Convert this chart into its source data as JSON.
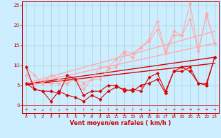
{
  "xlabel": "Vent moyen/en rafales ( km/h )",
  "bg_color": "#cceeff",
  "grid_color": "#aacccc",
  "xlim": [
    -0.5,
    23.5
  ],
  "ylim": [
    -2,
    26
  ],
  "xticks": [
    0,
    1,
    2,
    3,
    4,
    5,
    6,
    7,
    8,
    9,
    10,
    11,
    12,
    13,
    14,
    15,
    16,
    17,
    18,
    19,
    20,
    21,
    22,
    23
  ],
  "yticks": [
    0,
    5,
    10,
    15,
    20,
    25
  ],
  "lines": [
    {
      "comment": "light pink upper jagged line 1 (max line)",
      "x": [
        0,
        1,
        2,
        3,
        4,
        5,
        6,
        7,
        8,
        9,
        10,
        11,
        12,
        13,
        14,
        15,
        16,
        17,
        18,
        19,
        20,
        21,
        22,
        23
      ],
      "y": [
        9.5,
        7.5,
        5.5,
        7.5,
        6.5,
        5.5,
        6.5,
        5.5,
        6.5,
        9.5,
        9.5,
        11.5,
        13.5,
        13.0,
        14.5,
        16.5,
        21.0,
        13.5,
        18.5,
        17.5,
        25.5,
        13.5,
        23.0,
        15.5
      ],
      "color": "#ffaaaa",
      "lw": 0.8,
      "marker": "D",
      "ms": 2.5
    },
    {
      "comment": "light pink upper jagged line 2",
      "x": [
        0,
        1,
        2,
        3,
        4,
        5,
        6,
        7,
        8,
        9,
        10,
        11,
        12,
        13,
        14,
        15,
        16,
        17,
        18,
        19,
        20,
        21,
        22,
        23
      ],
      "y": [
        7.5,
        5.5,
        5.5,
        5.5,
        5.5,
        5.5,
        6.5,
        4.0,
        6.5,
        6.5,
        9.0,
        9.5,
        13.0,
        12.0,
        14.5,
        16.0,
        19.0,
        13.0,
        17.5,
        17.5,
        21.5,
        13.5,
        22.5,
        15.5
      ],
      "color": "#ffaaaa",
      "lw": 0.8,
      "marker": "D",
      "ms": 2.5
    },
    {
      "comment": "light pink trend upper",
      "x": [
        0,
        23
      ],
      "y": [
        5.5,
        18.5
      ],
      "color": "#ffaaaa",
      "lw": 1.0,
      "marker": null,
      "ms": 0
    },
    {
      "comment": "light pink trend lower",
      "x": [
        0,
        23
      ],
      "y": [
        5.2,
        15.5
      ],
      "color": "#ffaaaa",
      "lw": 1.0,
      "marker": null,
      "ms": 0
    },
    {
      "comment": "dark red upper jagged line 1",
      "x": [
        0,
        1,
        2,
        3,
        4,
        5,
        6,
        7,
        8,
        9,
        10,
        11,
        12,
        13,
        14,
        15,
        16,
        17,
        18,
        19,
        20,
        21,
        22,
        23
      ],
      "y": [
        9.5,
        4.0,
        3.5,
        3.5,
        3.0,
        7.5,
        6.5,
        2.5,
        3.5,
        3.5,
        5.0,
        5.0,
        3.5,
        4.0,
        3.5,
        7.0,
        8.0,
        3.5,
        8.5,
        9.5,
        8.5,
        5.5,
        5.0,
        12.0
      ],
      "color": "#dd0000",
      "lw": 0.8,
      "marker": "D",
      "ms": 2.5
    },
    {
      "comment": "dark red lower jagged line 2",
      "x": [
        0,
        1,
        2,
        3,
        4,
        5,
        6,
        7,
        8,
        9,
        10,
        11,
        12,
        13,
        14,
        15,
        16,
        17,
        18,
        19,
        20,
        21,
        22,
        23
      ],
      "y": [
        5.5,
        4.0,
        3.5,
        1.0,
        3.5,
        2.5,
        2.0,
        1.0,
        2.5,
        1.5,
        3.5,
        4.5,
        4.0,
        3.5,
        5.0,
        5.5,
        6.5,
        3.0,
        8.5,
        8.5,
        9.5,
        5.5,
        5.5,
        12.0
      ],
      "color": "#dd0000",
      "lw": 0.8,
      "marker": "D",
      "ms": 2.5
    },
    {
      "comment": "dark red trend upper",
      "x": [
        0,
        23
      ],
      "y": [
        5.3,
        12.0
      ],
      "color": "#dd0000",
      "lw": 1.0,
      "marker": null,
      "ms": 0
    },
    {
      "comment": "dark red trend lower",
      "x": [
        0,
        23
      ],
      "y": [
        5.1,
        10.5
      ],
      "color": "#dd0000",
      "lw": 1.0,
      "marker": null,
      "ms": 0
    }
  ],
  "arrow_symbols": [
    "→",
    "→",
    "↙",
    "↑",
    "↙",
    "←",
    "↑",
    "↑",
    "→",
    "↙",
    "↑",
    "→",
    "↑",
    "↑",
    "→",
    "↙",
    "↓",
    "→",
    "→",
    "→",
    "→",
    "→",
    "→",
    "→"
  ]
}
